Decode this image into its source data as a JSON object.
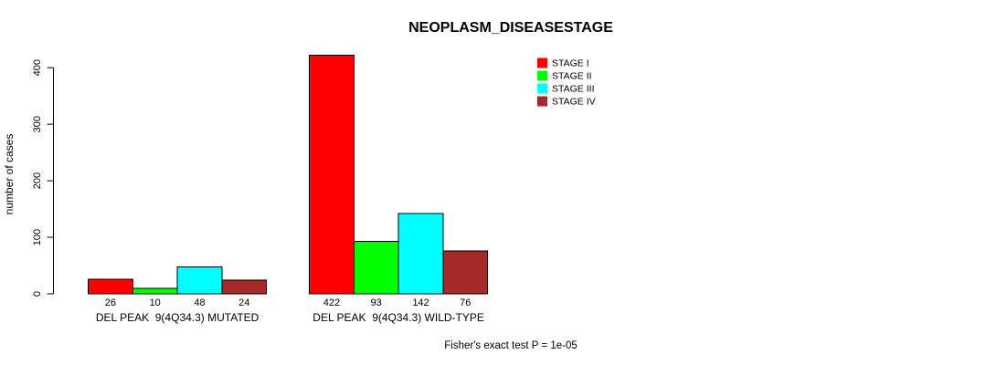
{
  "chart_data": {
    "type": "bar",
    "title": "NEOPLASM_DISEASESTAGE",
    "ylabel": "number of cases",
    "xlabel": "",
    "y_ticks": [
      0,
      100,
      200,
      300,
      400
    ],
    "ylim": [
      0,
      440
    ],
    "grid": false,
    "legend_position": "top-right",
    "series": [
      {
        "name": "STAGE I",
        "color": "#FF0000"
      },
      {
        "name": "STAGE II",
        "color": "#00FF00"
      },
      {
        "name": "STAGE III",
        "color": "#00FFFF"
      },
      {
        "name": "STAGE IV",
        "color": "#A52A2A"
      }
    ],
    "groups": [
      {
        "label": "DEL PEAK  9(4Q34.3) MUTATED",
        "values": [
          26,
          10,
          48,
          24
        ]
      },
      {
        "label": "DEL PEAK  9(4Q34.3) WILD-TYPE",
        "values": [
          422,
          93,
          142,
          76
        ]
      }
    ],
    "footnote": "Fisher's exact test P = 1e-05"
  }
}
